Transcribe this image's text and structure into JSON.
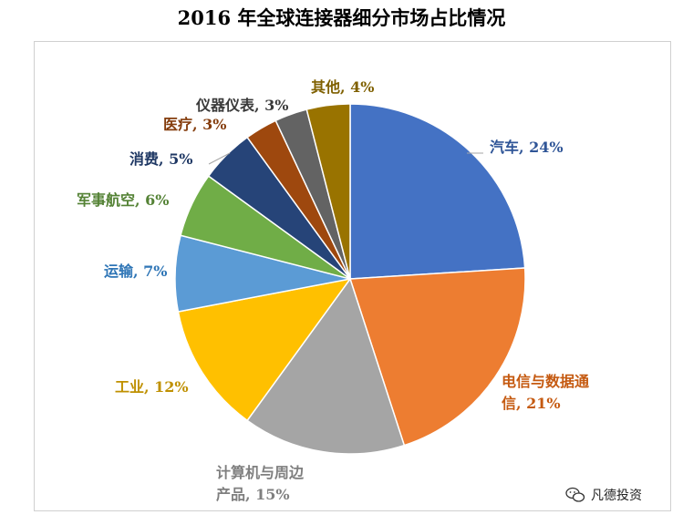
{
  "title": "2016 年全球连接器细分市场占比情况",
  "chart_data": {
    "type": "pie",
    "title": "2016 年全球连接器细分市场占比情况",
    "slices": [
      {
        "lines": [
          "汽车, 24%"
        ],
        "value": 24,
        "color": "#4472C4",
        "label_color": "#2F5597"
      },
      {
        "lines": [
          "电信与数据通",
          "信, 21%"
        ],
        "value": 21,
        "color": "#ED7D31",
        "label_color": "#C55A11"
      },
      {
        "lines": [
          "计算机与周边",
          "产品, 15%"
        ],
        "value": 15,
        "color": "#A5A5A5",
        "label_color": "#7F7F7F"
      },
      {
        "lines": [
          "工业, 12%"
        ],
        "value": 12,
        "color": "#FFC000",
        "label_color": "#BF9000"
      },
      {
        "lines": [
          "运输, 7%"
        ],
        "value": 7,
        "color": "#5B9BD5",
        "label_color": "#2E75B6"
      },
      {
        "lines": [
          "军事航空, 6%"
        ],
        "value": 6,
        "color": "#70AD47",
        "label_color": "#548235"
      },
      {
        "lines": [
          "消费, 5%"
        ],
        "value": 5,
        "color": "#264478",
        "label_color": "#1F3864"
      },
      {
        "lines": [
          "医疗, 3%"
        ],
        "value": 3,
        "color": "#9E480E",
        "label_color": "#843C0C"
      },
      {
        "lines": [
          "仪器仪表, 3%"
        ],
        "value": 3,
        "color": "#636363",
        "label_color": "#3A3A3A"
      },
      {
        "lines": [
          "其他, 4%"
        ],
        "value": 4,
        "color": "#997300",
        "label_color": "#7F6000"
      }
    ]
  },
  "watermark": {
    "text": "凡德投资",
    "icon": "wechat-icon"
  }
}
